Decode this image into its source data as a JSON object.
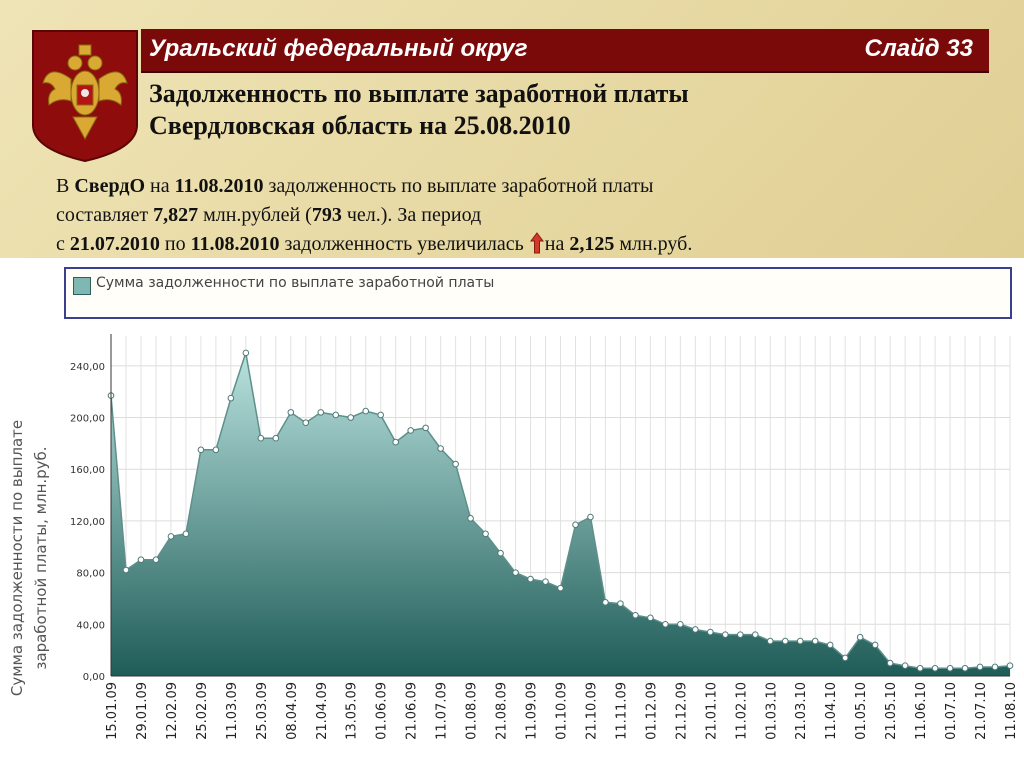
{
  "header": {
    "region": "Уральский федеральный округ",
    "slide": "Слайд 33",
    "title_line1": "Задолженность по выплате заработной платы",
    "title_line2": "Свердловская область на 25.08.2010"
  },
  "summary": {
    "p1": "В ",
    "region_short": "СвердО",
    "p2": " на ",
    "date1": "11.08.2010",
    "p3": " задолженность по выплате заработной платы",
    "p4": "составляет ",
    "amount": "7,827",
    "p5": " млн.рублей (",
    "people": "793",
    "p6": " чел.). За период",
    "p7": "с ",
    "date_from": "21.07.2010",
    "p8": " по ",
    "date_to": "11.08.2010",
    "p9": " задолженность увеличилась ",
    "p10": "на ",
    "increase": "2,125",
    "p11": " млн.руб."
  },
  "colors": {
    "title_bar": "#7a0a0a",
    "fill_top": "#a9d8d4",
    "fill_bottom": "#1f5c58",
    "line": "#5e8f8b",
    "arrow": "#d03a2a"
  },
  "icons": {
    "crest": "russian-coat-of-arms-icon",
    "arrow": "red-up-arrow-icon"
  },
  "chart_data": {
    "type": "area",
    "legend": "Сумма задолженности по выплате заработной платы",
    "ylabel_line1": "Сумма задолженности по выплате",
    "ylabel_line2": "заработной платы, млн.руб.",
    "ylim": [
      0,
      260
    ],
    "yticks": [
      "0,00",
      "40,00",
      "80,00",
      "120,00",
      "160,00",
      "200,00",
      "240,00"
    ],
    "ytick_values": [
      0,
      40,
      80,
      120,
      160,
      200,
      240
    ],
    "x_labels": [
      "15.01.09",
      "29.01.09",
      "12.02.09",
      "25.02.09",
      "11.03.09",
      "25.03.09",
      "08.04.09",
      "21.04.09",
      "13.05.09",
      "01.06.09",
      "21.06.09",
      "11.07.09",
      "01.08.09",
      "21.08.09",
      "11.09.09",
      "01.10.09",
      "21.10.09",
      "11.11.09",
      "01.12.09",
      "21.12.09",
      "21.01.10",
      "11.02.10",
      "01.03.10",
      "21.03.10",
      "11.04.10",
      "01.05.10",
      "21.05.10",
      "11.06.10",
      "01.07.10",
      "21.07.10",
      "11.08.10"
    ],
    "values": [
      217,
      82,
      90,
      90,
      108,
      110,
      175,
      175,
      215,
      250,
      184,
      184,
      204,
      196,
      204,
      202,
      200,
      205,
      202,
      181,
      190,
      192,
      176,
      164,
      122,
      110,
      95,
      80,
      75,
      73,
      68,
      117,
      123,
      57,
      56,
      47,
      45,
      40,
      40,
      36,
      34,
      32,
      32,
      32,
      27,
      27,
      27,
      27,
      24,
      14,
      30,
      24,
      10,
      8,
      6,
      6,
      6,
      6,
      7,
      7,
      8
    ],
    "grid": true,
    "legend_position": "top"
  }
}
